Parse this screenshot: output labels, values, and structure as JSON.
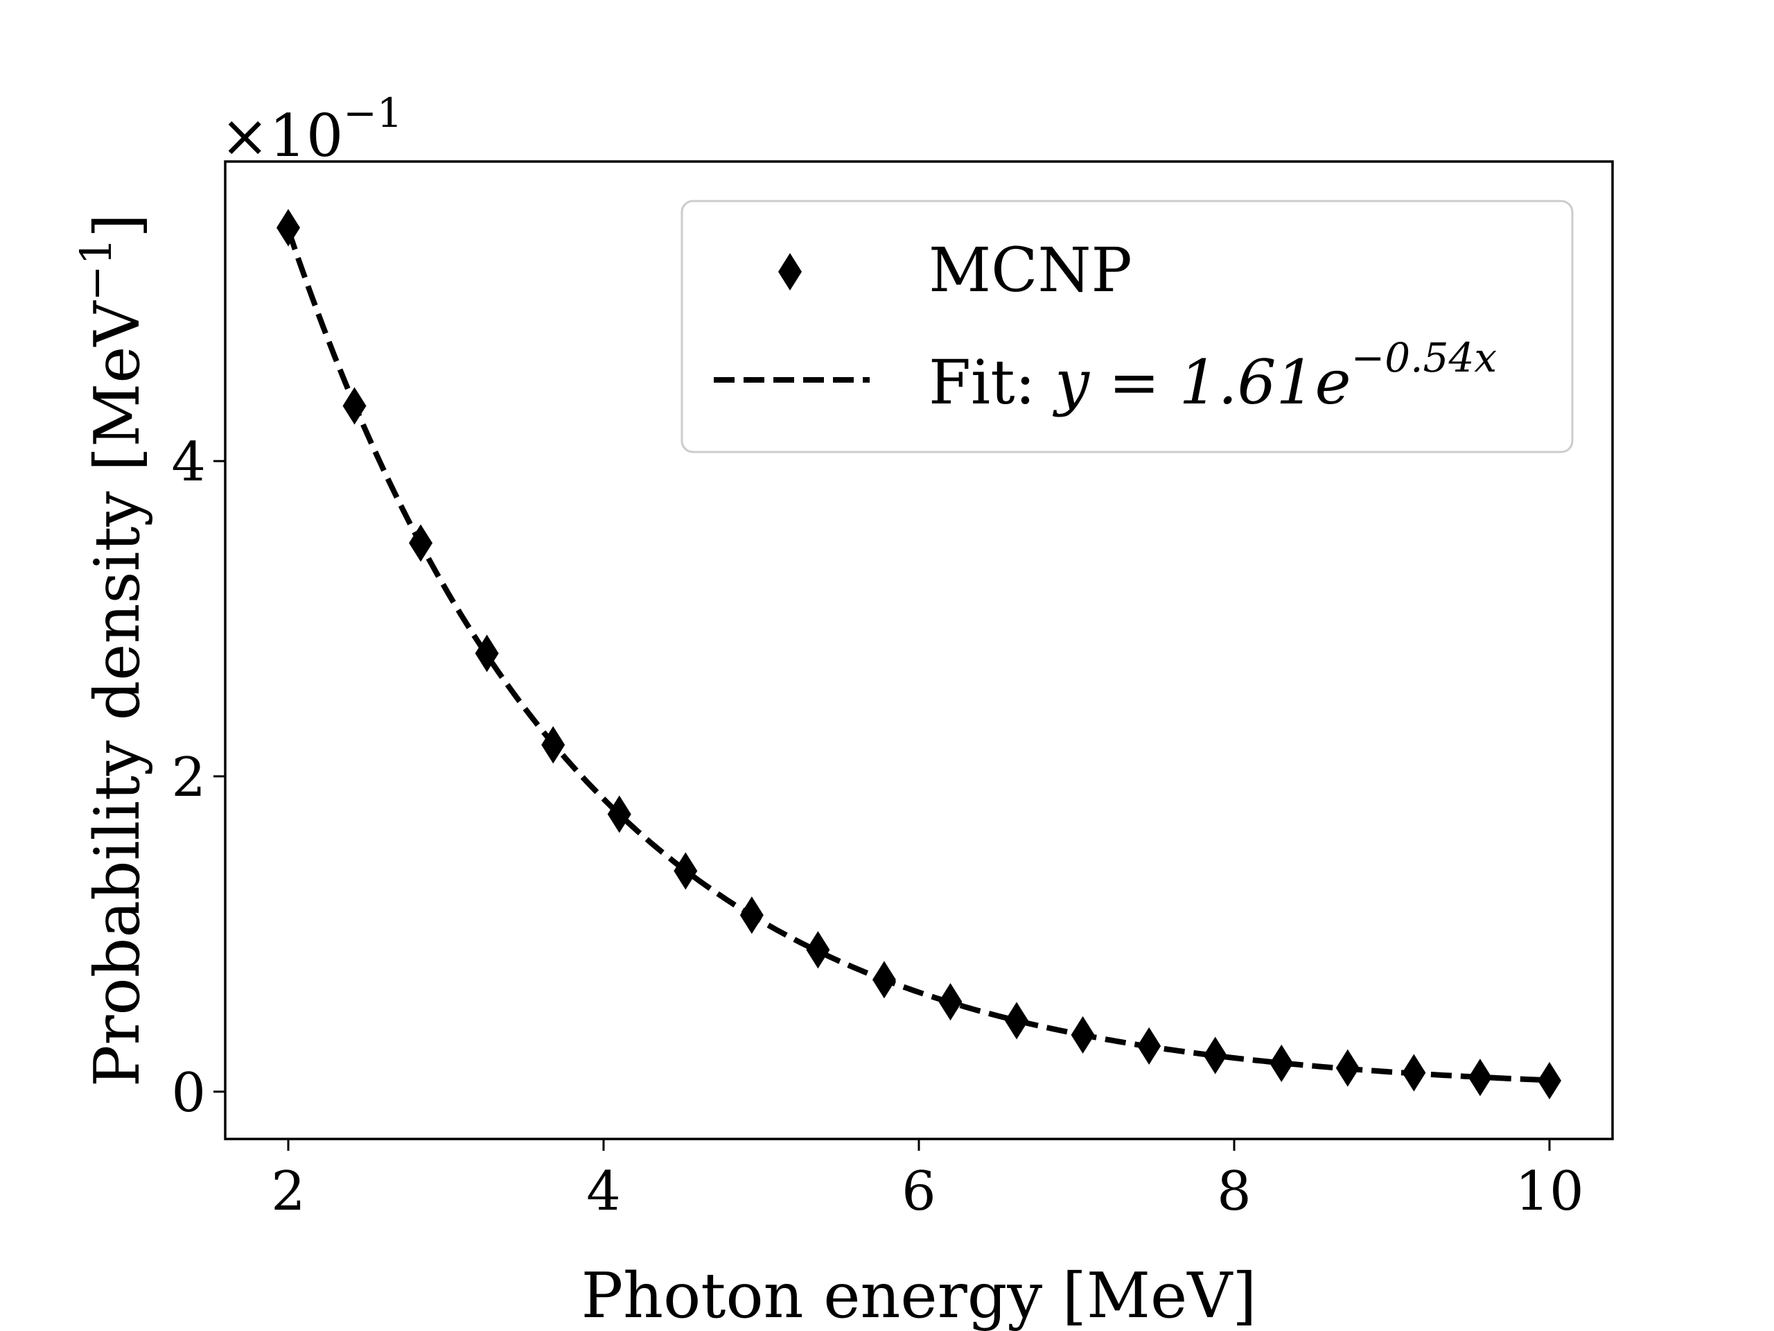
{
  "chart_data": {
    "type": "scatter",
    "xlabel": "Photon energy [MeV]",
    "ylabel": "Probability density [MeV",
    "ylabel_superscript": "−1",
    "ylabel_close": "]",
    "y_multiplier": "×10",
    "y_multiplier_exp": "−1",
    "xlim": [
      1.6,
      10.4
    ],
    "ylim": [
      -0.3,
      5.9
    ],
    "xticks": [
      2,
      4,
      6,
      8,
      10
    ],
    "xtick_labels": [
      "2",
      "4",
      "6",
      "8",
      "10"
    ],
    "yticks": [
      0,
      2,
      4
    ],
    "ytick_labels": [
      "0",
      "2",
      "4"
    ],
    "grid": false,
    "legend_position": "top-right",
    "series": [
      {
        "name": "MCNP",
        "kind": "markers",
        "marker": "thin-diamond",
        "color": "#000000",
        "x": [
          2.0,
          2.42,
          2.84,
          3.26,
          3.68,
          4.1,
          4.52,
          4.94,
          5.36,
          5.78,
          6.2,
          6.62,
          7.04,
          7.46,
          7.88,
          8.3,
          8.72,
          9.14,
          9.56,
          10.0
        ],
        "y": [
          5.48,
          4.35,
          3.48,
          2.78,
          2.2,
          1.76,
          1.4,
          1.12,
          0.9,
          0.71,
          0.57,
          0.45,
          0.36,
          0.29,
          0.23,
          0.18,
          0.15,
          0.12,
          0.09,
          0.07
        ]
      },
      {
        "name": "Fit: ",
        "name_math": "y = 1.61e",
        "name_math_exp": "−0.54x",
        "kind": "line",
        "style": "dashed",
        "color": "#000000",
        "fit": {
          "a": 16.1,
          "b": 0.54
        }
      }
    ]
  }
}
